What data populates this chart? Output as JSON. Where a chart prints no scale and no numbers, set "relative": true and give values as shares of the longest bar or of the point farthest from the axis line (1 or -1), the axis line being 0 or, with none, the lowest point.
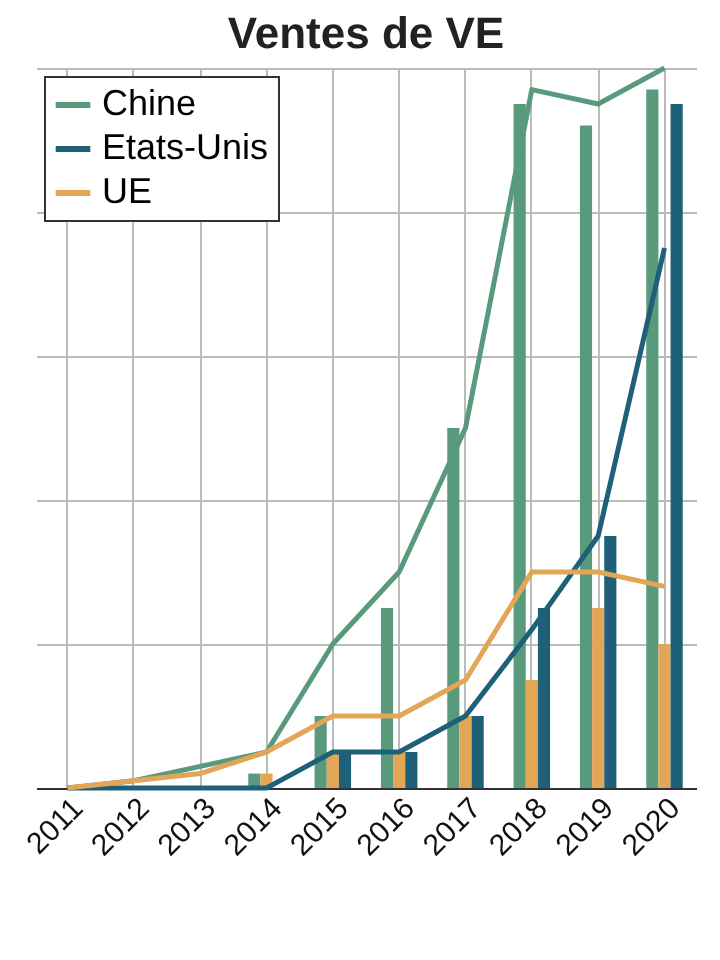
{
  "chart_data": {
    "type": "bar",
    "title": "Ventes de VE",
    "relative": true,
    "grid": true,
    "legend": "top left",
    "categories": [
      "2011",
      "2012",
      "2013",
      "2014",
      "2015",
      "2016",
      "2017",
      "2018",
      "2019",
      "2020"
    ],
    "series": [
      {
        "color": "#5a9a7c",
        "values": [
          0,
          0,
          0,
          0.02,
          0.1,
          0.25,
          0.5,
          0.95,
          0.92,
          0.97
        ]
      },
      {
        "color": "#e3a556",
        "values": [
          0,
          0,
          0,
          0.02,
          0.05,
          0.05,
          0.1,
          0.15,
          0.25,
          0.2
        ]
      },
      {
        "color": "#1f6079",
        "values": [
          0,
          0,
          0,
          0,
          0.05,
          0.05,
          0.1,
          0.25,
          0.35,
          0.95
        ]
      },
      {
        "type": "line",
        "name": "Chine",
        "color": "#5a9a7c",
        "values": [
          0,
          0.01,
          0.03,
          0.05,
          0.2,
          0.3,
          0.5,
          0.97,
          0.95,
          1
        ]
      },
      {
        "type": "line",
        "name": "Etats-Unis",
        "color": "#1f6079",
        "values": [
          0,
          0,
          0,
          0,
          0.05,
          0.05,
          0.1,
          0.22,
          0.35,
          0.75
        ]
      },
      {
        "type": "line",
        "name": "UE",
        "color": "#e3a556",
        "values": [
          0,
          0.01,
          0.02,
          0.05,
          0.1,
          0.1,
          0.15,
          0.3,
          0.3,
          0.28
        ]
      }
    ]
  }
}
